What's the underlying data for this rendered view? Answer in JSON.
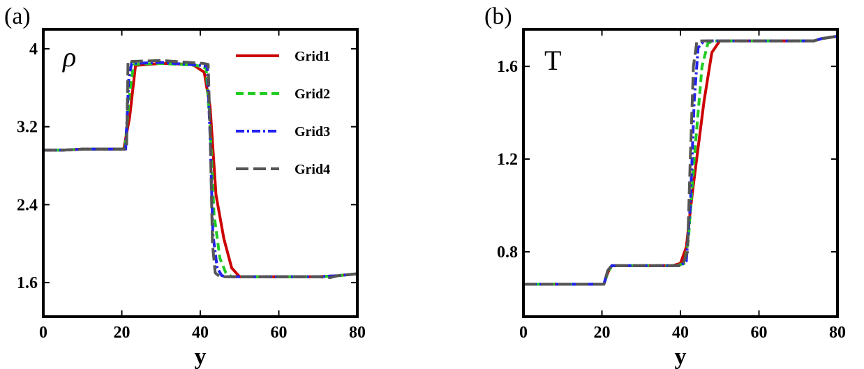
{
  "figure": {
    "panels": [
      {
        "tag": "(a)",
        "var_label": "ρ"
      },
      {
        "tag": "(b)",
        "var_label": "T"
      }
    ],
    "legend": [
      "Grid1",
      "Grid2",
      "Grid3",
      "Grid4"
    ]
  },
  "chart_data": [
    {
      "type": "line",
      "title": "",
      "xlabel": "y",
      "ylabel": "ρ",
      "xlim": [
        0,
        80
      ],
      "ylim": [
        1.25,
        4.2
      ],
      "xticks": [
        0,
        20,
        40,
        60,
        80
      ],
      "yticks": [
        1.6,
        2.4,
        3.2,
        4.0
      ],
      "ytick_labels": [
        "1.6",
        "2.4",
        "3.2",
        "4"
      ],
      "grid": false,
      "legend_position": "top-right",
      "series": [
        {
          "name": "Grid1",
          "color": "#cc0000",
          "dash": "solid",
          "x": [
            0,
            5,
            10,
            20.5,
            22,
            23.5,
            30,
            38,
            41,
            42.5,
            44,
            46,
            48,
            50,
            60,
            70,
            75,
            80
          ],
          "y": [
            2.96,
            2.96,
            2.97,
            2.97,
            3.3,
            3.83,
            3.85,
            3.84,
            3.76,
            3.4,
            2.5,
            2.05,
            1.75,
            1.66,
            1.66,
            1.66,
            1.67,
            1.69
          ]
        },
        {
          "name": "Grid2",
          "color": "#22cc22",
          "dash": "dashed",
          "x": [
            0,
            5,
            10,
            20.8,
            22,
            23,
            30,
            39,
            41.5,
            42.5,
            43.5,
            45,
            46.5,
            48,
            60,
            70,
            75,
            80
          ],
          "y": [
            2.96,
            2.96,
            2.97,
            2.97,
            3.55,
            3.84,
            3.85,
            3.83,
            3.8,
            3.2,
            2.3,
            1.85,
            1.7,
            1.66,
            1.66,
            1.66,
            1.67,
            1.69
          ]
        },
        {
          "name": "Grid3",
          "color": "#2222ee",
          "dash": "dashdot",
          "x": [
            0,
            5,
            10,
            21,
            21.8,
            22.5,
            30,
            40,
            41.8,
            42.5,
            43.2,
            44.3,
            45.5,
            47,
            60,
            70,
            75,
            80
          ],
          "y": [
            2.96,
            2.96,
            2.97,
            2.97,
            3.7,
            3.85,
            3.86,
            3.83,
            3.82,
            3.1,
            2.1,
            1.75,
            1.67,
            1.66,
            1.66,
            1.66,
            1.67,
            1.69
          ]
        },
        {
          "name": "Grid4",
          "color": "#555555",
          "dash": "longdash",
          "x": [
            0,
            5,
            10,
            21.2,
            21.6,
            22.3,
            30,
            40.8,
            42,
            42.6,
            43.1,
            43.8,
            45,
            60,
            70,
            73,
            75,
            80
          ],
          "y": [
            2.96,
            2.96,
            2.97,
            2.97,
            3.88,
            3.87,
            3.88,
            3.85,
            3.84,
            3.0,
            2.0,
            1.7,
            1.66,
            1.66,
            1.66,
            1.65,
            1.67,
            1.69
          ]
        }
      ]
    },
    {
      "type": "line",
      "title": "",
      "xlabel": "y",
      "ylabel": "T",
      "xlim": [
        0,
        80
      ],
      "ylim": [
        0.52,
        1.76
      ],
      "xticks": [
        0,
        20,
        40,
        60,
        80
      ],
      "yticks": [
        0.8,
        1.2,
        1.6
      ],
      "ytick_labels": [
        "0.8",
        "1.2",
        "1.6"
      ],
      "grid": false,
      "legend_position": "none",
      "series": [
        {
          "name": "Grid1",
          "color": "#cc0000",
          "dash": "solid",
          "x": [
            0,
            10,
            20.5,
            21.5,
            22.5,
            30,
            38,
            40,
            41.5,
            43,
            46,
            48,
            50,
            60,
            70,
            74,
            76,
            80
          ],
          "y": [
            0.66,
            0.66,
            0.66,
            0.71,
            0.74,
            0.74,
            0.74,
            0.75,
            0.82,
            1.05,
            1.45,
            1.66,
            1.71,
            1.71,
            1.71,
            1.71,
            1.72,
            1.73
          ]
        },
        {
          "name": "Grid2",
          "color": "#22cc22",
          "dash": "dashed",
          "x": [
            0,
            10,
            20.5,
            21.5,
            22.5,
            30,
            39,
            41,
            42,
            43.5,
            45.5,
            47,
            48.5,
            60,
            70,
            74,
            76,
            80
          ],
          "y": [
            0.66,
            0.66,
            0.66,
            0.71,
            0.74,
            0.74,
            0.74,
            0.75,
            0.85,
            1.2,
            1.6,
            1.7,
            1.71,
            1.71,
            1.71,
            1.71,
            1.72,
            1.73
          ]
        },
        {
          "name": "Grid3",
          "color": "#2222ee",
          "dash": "dashdot",
          "x": [
            0,
            10,
            20.5,
            21.5,
            22.5,
            30,
            40,
            41.5,
            42.5,
            43.5,
            44.5,
            46,
            60,
            70,
            74,
            76,
            80
          ],
          "y": [
            0.66,
            0.66,
            0.66,
            0.72,
            0.74,
            0.74,
            0.74,
            0.76,
            1.0,
            1.45,
            1.68,
            1.71,
            1.71,
            1.71,
            1.71,
            1.72,
            1.73
          ]
        },
        {
          "name": "Grid4",
          "color": "#555555",
          "dash": "longdash",
          "x": [
            0,
            10,
            20.5,
            21.5,
            22.5,
            30,
            40.5,
            41.8,
            42.5,
            43.3,
            44.2,
            45,
            60,
            70,
            74,
            76,
            80
          ],
          "y": [
            0.66,
            0.66,
            0.66,
            0.72,
            0.74,
            0.74,
            0.74,
            0.8,
            1.2,
            1.6,
            1.71,
            1.71,
            1.71,
            1.71,
            1.71,
            1.72,
            1.73
          ]
        }
      ]
    }
  ]
}
